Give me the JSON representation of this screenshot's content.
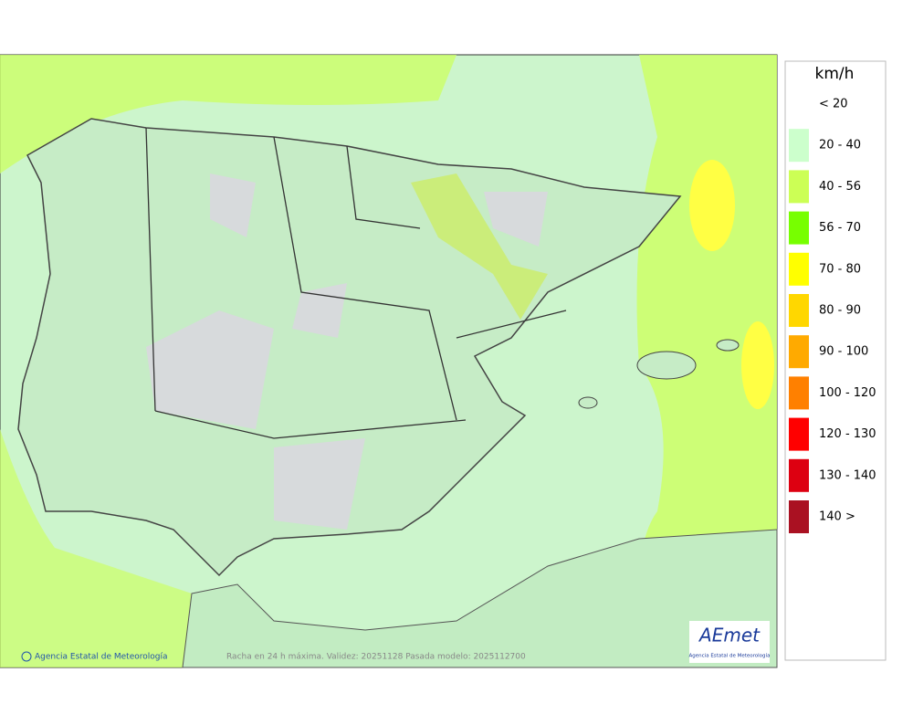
{
  "map": {
    "caption": "Racha en 24 h máxima. Validez: 20251128 Pasada modelo: 2025112700",
    "credit": "Agencia Estatal de Meteorología",
    "logo": {
      "name": "AEmet",
      "subtitle": "Agencia Estatal de Meteorología"
    }
  },
  "legend": {
    "unit": "km/h",
    "entries": [
      {
        "label": "< 20"
      },
      {
        "label": "20 - 40",
        "color": "#ccffcc"
      },
      {
        "label": "40 - 56",
        "color": "#ccff55"
      },
      {
        "label": "56 - 70",
        "color": "#77ff00"
      },
      {
        "label": "70 - 80",
        "color": "#ffff00"
      },
      {
        "label": "80 - 90",
        "color": "#ffd700"
      },
      {
        "label": "90 - 100",
        "color": "#ffaa00"
      },
      {
        "label": "100 - 120",
        "color": "#ff8000"
      },
      {
        "label": "120 - 130",
        "color": "#ff0000"
      },
      {
        "label": "130 - 140",
        "color": "#dd0011"
      },
      {
        "label": "140 >",
        "color": "#aa1122"
      }
    ]
  }
}
